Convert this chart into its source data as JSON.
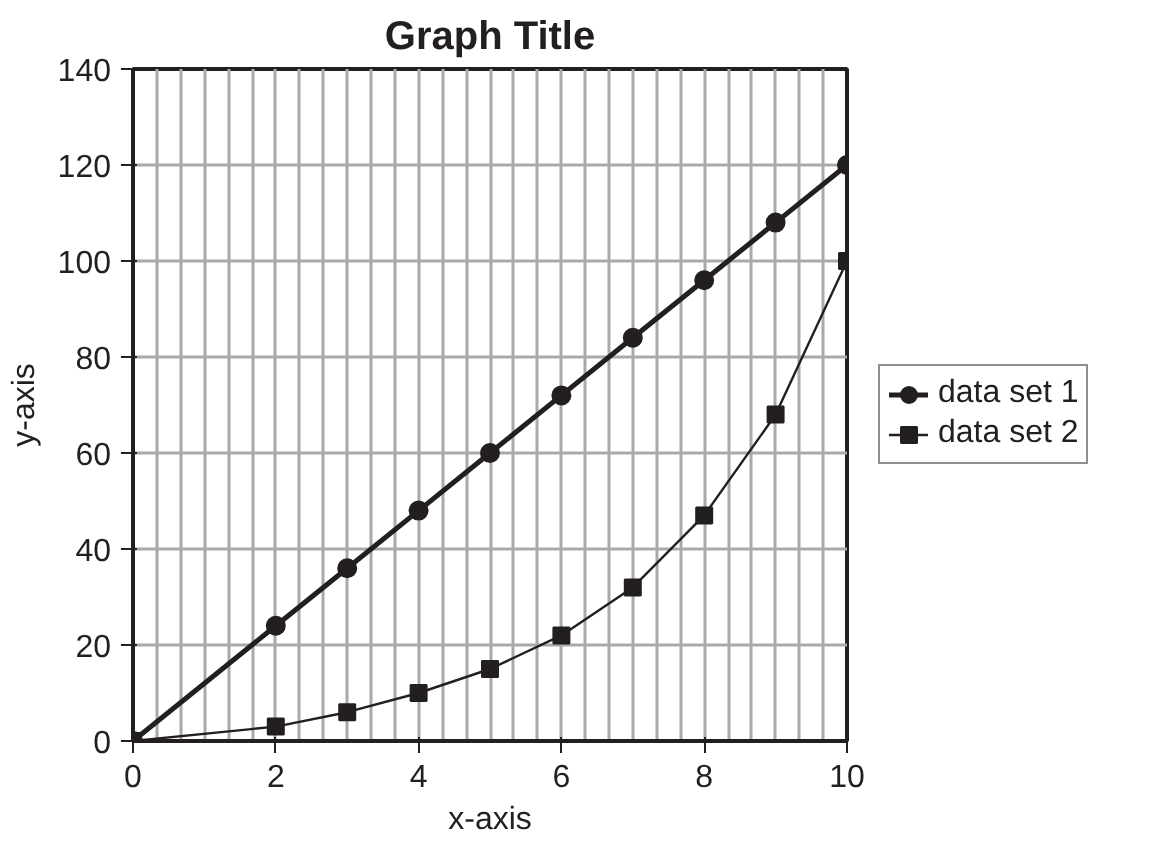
{
  "chart_data": {
    "type": "line",
    "title": "Graph Title",
    "xlabel": "x-axis",
    "ylabel": "y-axis",
    "xlim": [
      0,
      10
    ],
    "ylim": [
      0,
      140
    ],
    "xticks": [
      0,
      2,
      4,
      6,
      8,
      10
    ],
    "yticks": [
      0,
      20,
      40,
      60,
      80,
      100,
      120,
      140
    ],
    "grid": true,
    "legend": "right",
    "series": [
      {
        "name": "data set 1",
        "color": "#231f20",
        "marker": "circle",
        "x": [
          0,
          2,
          3,
          4,
          5,
          6,
          7,
          8,
          9,
          10
        ],
        "values": [
          0,
          24,
          36,
          48,
          60,
          72,
          84,
          96,
          108,
          120
        ]
      },
      {
        "name": "data set 2",
        "color": "#231f20",
        "marker": "square",
        "x": [
          0,
          2,
          3,
          4,
          5,
          6,
          7,
          8,
          9,
          10
        ],
        "values": [
          0,
          3,
          6,
          10,
          15,
          22,
          32,
          47,
          68,
          100
        ]
      }
    ]
  }
}
